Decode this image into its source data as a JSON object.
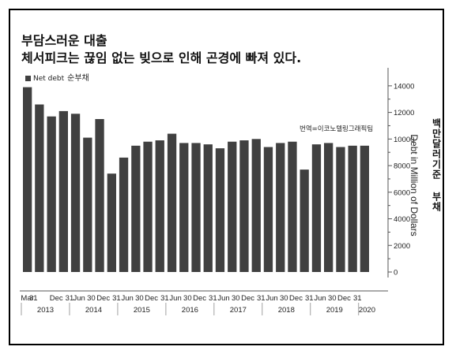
{
  "title_line1": "부담스러운 대출",
  "title_line2": "체서피크는 끊임 없는 빚으로 인해 곤경에 빠져 있다.",
  "legend": {
    "en": "Net debt",
    "ko": "순부채"
  },
  "credit": "번역=이코노텔링그래픽팀",
  "ylabel_en": "Debt in Million of Dollars",
  "ylabel_ko": "백만달러기준 부채",
  "colors": {
    "bar": "#404040",
    "axis": "#555555"
  },
  "chart_data": {
    "type": "bar",
    "categories": [
      "Mar 2013",
      "Jun 2013",
      "Sep 2013",
      "Dec 2013",
      "Mar 2014",
      "Jun 2014",
      "Sep 2014",
      "Dec 2014",
      "Mar 2015",
      "Jun 2015",
      "Sep 2015",
      "Dec 2015",
      "Mar 2016",
      "Jun 2016",
      "Sep 2016",
      "Dec 2016",
      "Mar 2017",
      "Jun 2017",
      "Sep 2017",
      "Dec 2017",
      "Mar 2018",
      "Jun 2018",
      "Sep 2018",
      "Dec 2018",
      "Mar 2019",
      "Jun 2019",
      "Sep 2019",
      "Dec 2019",
      "Mar 2020"
    ],
    "series": [
      {
        "name": "Net debt",
        "values": [
          13900,
          12600,
          11700,
          12100,
          11900,
          10100,
          11500,
          7400,
          8600,
          9500,
          9800,
          9900,
          10400,
          9700,
          9700,
          9600,
          9300,
          9800,
          9900,
          10000,
          9400,
          9700,
          9800,
          7700,
          9600,
          9700,
          9400,
          9500,
          9500
        ]
      }
    ],
    "ylim": [
      0,
      15000
    ],
    "yticks": [
      0,
      2000,
      4000,
      6000,
      8000,
      10000,
      12000,
      14000
    ],
    "xtick_labels": [
      {
        "label": "Mar",
        "index": 0
      },
      {
        "label": "31",
        "index": 0.5
      },
      {
        "label": "Dec",
        "index": 2.4
      },
      {
        "label": "31",
        "index": 3.5
      },
      {
        "label": "Jun",
        "index": 4.3
      },
      {
        "label": "30",
        "index": 5.3
      },
      {
        "label": "Dec",
        "index": 6.3
      },
      {
        "label": "31",
        "index": 7.4
      },
      {
        "label": "Jun",
        "index": 8.3
      },
      {
        "label": "30",
        "index": 9.3
      },
      {
        "label": "Dec",
        "index": 10.3
      },
      {
        "label": "31",
        "index": 11.4
      },
      {
        "label": "Jun",
        "index": 12.3
      },
      {
        "label": "30",
        "index": 13.3
      },
      {
        "label": "Dec",
        "index": 14.3
      },
      {
        "label": "31",
        "index": 15.4
      },
      {
        "label": "Jun",
        "index": 16.3
      },
      {
        "label": "30",
        "index": 17.3
      },
      {
        "label": "Dec",
        "index": 18.3
      },
      {
        "label": "31",
        "index": 19.4
      },
      {
        "label": "Jun",
        "index": 20.3
      },
      {
        "label": "30",
        "index": 21.3
      },
      {
        "label": "Dec",
        "index": 22.3
      },
      {
        "label": "31",
        "index": 23.4
      },
      {
        "label": "Jun",
        "index": 24.3
      },
      {
        "label": "30",
        "index": 25.3
      },
      {
        "label": "Dec",
        "index": 26.3
      },
      {
        "label": "31",
        "index": 27.4
      }
    ],
    "years": [
      {
        "label": "2013",
        "index": 1.5
      },
      {
        "label": "2014",
        "index": 5.5
      },
      {
        "label": "2015",
        "index": 9.5
      },
      {
        "label": "2016",
        "index": 13.5
      },
      {
        "label": "2017",
        "index": 17.5
      },
      {
        "label": "2018",
        "index": 21.5
      },
      {
        "label": "2019",
        "index": 25.5
      },
      {
        "label": "2020",
        "index": 28.2
      }
    ],
    "grid": false,
    "legend_position": "top-left"
  }
}
